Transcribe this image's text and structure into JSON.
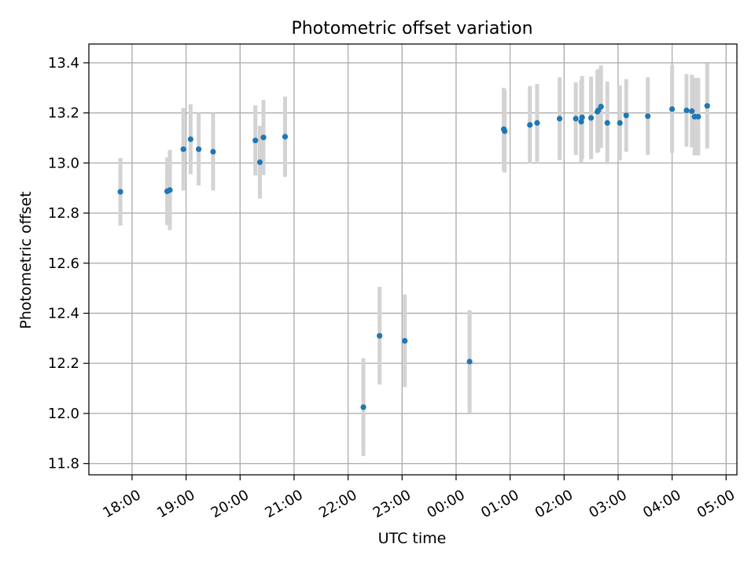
{
  "chart_data": {
    "type": "scatter",
    "title": "Photometric offset variation",
    "xlabel": "UTC time",
    "ylabel": "Photometric offset",
    "x_unit": "hours",
    "xlim": [
      "17:12",
      "05:12"
    ],
    "ylim": [
      11.755,
      13.475
    ],
    "grid": true,
    "x_ticks": [
      "18:00",
      "19:00",
      "20:00",
      "21:00",
      "22:00",
      "23:00",
      "00:00",
      "01:00",
      "02:00",
      "03:00",
      "04:00",
      "05:00"
    ],
    "y_ticks": [
      "11.8",
      "12.0",
      "12.2",
      "12.4",
      "12.6",
      "12.8",
      "13.0",
      "13.2",
      "13.4"
    ],
    "colors": {
      "points": "#1f77b4",
      "errorbars": "#d3d3d3",
      "grid": "#b0b0b0"
    },
    "points": [
      {
        "x": "17:47",
        "y": 12.885,
        "err": 0.135
      },
      {
        "x": "18:39",
        "y": 12.887,
        "err": 0.135
      },
      {
        "x": "18:42",
        "y": 12.892,
        "err": 0.16
      },
      {
        "x": "18:57",
        "y": 13.055,
        "err": 0.165
      },
      {
        "x": "19:05",
        "y": 13.095,
        "err": 0.14
      },
      {
        "x": "19:14",
        "y": 13.055,
        "err": 0.145
      },
      {
        "x": "19:30",
        "y": 13.045,
        "err": 0.155
      },
      {
        "x": "20:17",
        "y": 13.09,
        "err": 0.14
      },
      {
        "x": "20:22",
        "y": 13.003,
        "err": 0.145
      },
      {
        "x": "20:26",
        "y": 13.102,
        "err": 0.15
      },
      {
        "x": "20:50",
        "y": 13.105,
        "err": 0.16
      },
      {
        "x": "22:17",
        "y": 12.025,
        "err": 0.195
      },
      {
        "x": "22:35",
        "y": 12.31,
        "err": 0.195
      },
      {
        "x": "23:03",
        "y": 12.29,
        "err": 0.185
      },
      {
        "x": "00:15",
        "y": 12.207,
        "err": 0.205
      },
      {
        "x": "00:53",
        "y": 13.135,
        "err": 0.165
      },
      {
        "x": "00:54",
        "y": 13.127,
        "err": 0.165
      },
      {
        "x": "01:22",
        "y": 13.152,
        "err": 0.155
      },
      {
        "x": "01:30",
        "y": 13.16,
        "err": 0.155
      },
      {
        "x": "01:55",
        "y": 13.177,
        "err": 0.165
      },
      {
        "x": "02:13",
        "y": 13.177,
        "err": 0.145
      },
      {
        "x": "02:19",
        "y": 13.165,
        "err": 0.165
      },
      {
        "x": "02:20",
        "y": 13.182,
        "err": 0.165
      },
      {
        "x": "02:30",
        "y": 13.18,
        "err": 0.165
      },
      {
        "x": "02:37",
        "y": 13.205,
        "err": 0.165
      },
      {
        "x": "02:38",
        "y": 13.21,
        "err": 0.165
      },
      {
        "x": "02:41",
        "y": 13.225,
        "err": 0.165
      },
      {
        "x": "02:48",
        "y": 13.16,
        "err": 0.165
      },
      {
        "x": "03:02",
        "y": 13.16,
        "err": 0.15
      },
      {
        "x": "03:09",
        "y": 13.19,
        "err": 0.145
      },
      {
        "x": "03:33",
        "y": 13.187,
        "err": 0.155
      },
      {
        "x": "04:00",
        "y": 13.215,
        "err": 0.175
      },
      {
        "x": "04:16",
        "y": 13.21,
        "err": 0.145
      },
      {
        "x": "04:22",
        "y": 13.207,
        "err": 0.145
      },
      {
        "x": "04:25",
        "y": 13.185,
        "err": 0.155
      },
      {
        "x": "04:29",
        "y": 13.185,
        "err": 0.155
      },
      {
        "x": "04:39",
        "y": 13.228,
        "err": 0.17
      }
    ]
  }
}
